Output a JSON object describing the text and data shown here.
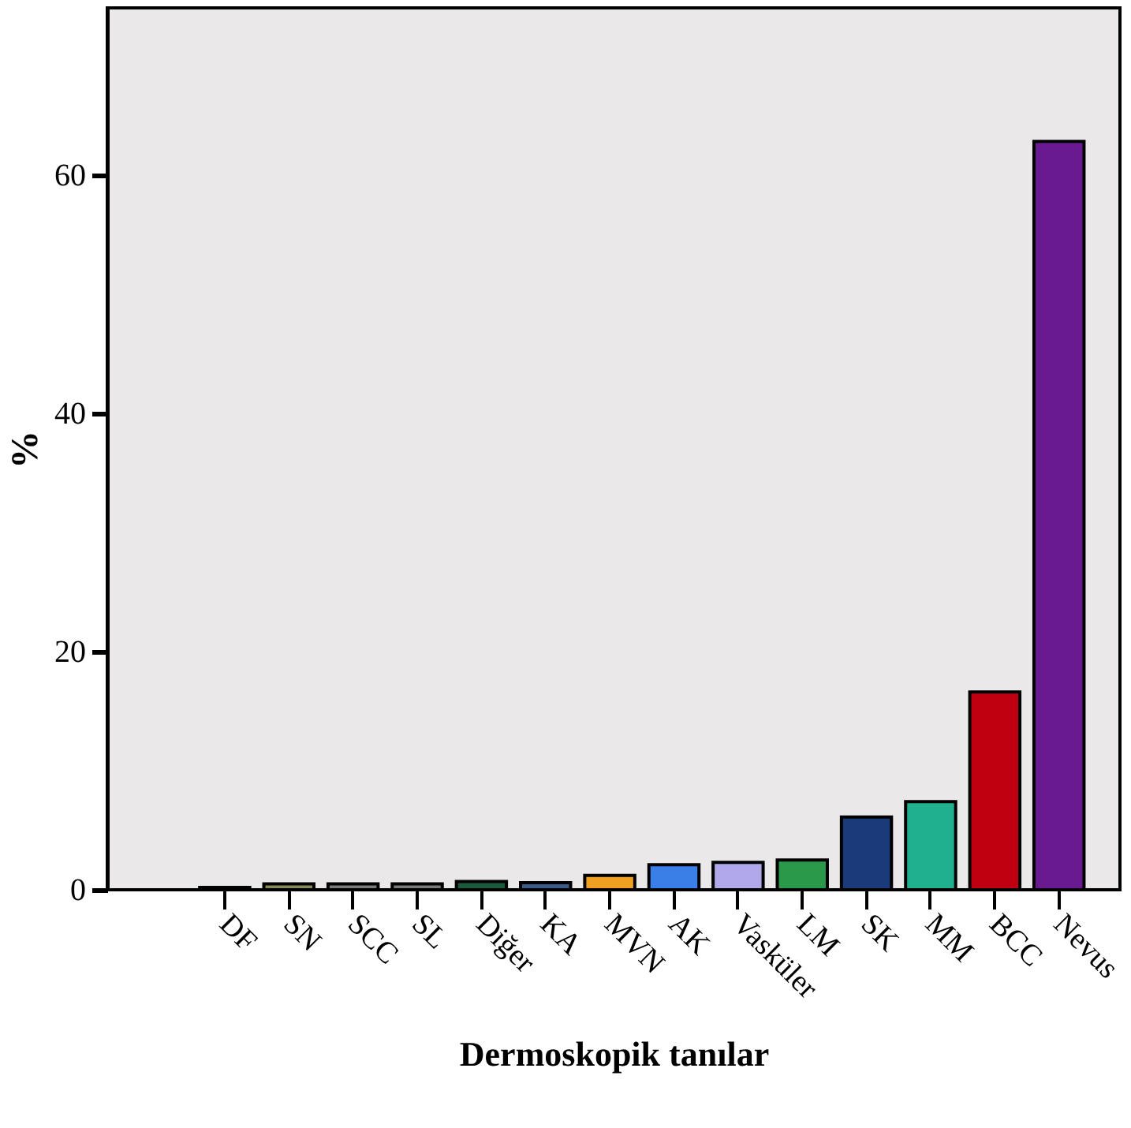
{
  "chart_data": {
    "type": "bar",
    "xlabel": "Dermoskopik tanılar",
    "ylabel": "%",
    "categories": [
      "DF",
      "SN",
      "SCC",
      "SL",
      "Diğer",
      "KA",
      "MVN",
      "AK",
      "Vasküler",
      "LM",
      "SK",
      "MM",
      "BCC",
      "Nevus"
    ],
    "values": [
      0.2,
      0.5,
      0.5,
      0.5,
      0.7,
      0.6,
      1.2,
      2.1,
      2.3,
      2.5,
      6.1,
      7.4,
      16.6,
      62.8
    ],
    "colors": [
      "#5a3434",
      "#8a8a58",
      "#7c7c7c",
      "#7a7a7a",
      "#1d5a3c",
      "#3a5a88",
      "#f0a020",
      "#3a7ee8",
      "#b0a8e8",
      "#2a9a4a",
      "#1a3a7a",
      "#20b090",
      "#c00010",
      "#6a1a90"
    ],
    "ylim": [
      0,
      74
    ],
    "yticks": [
      0,
      20,
      40,
      60
    ],
    "grid": false
  }
}
